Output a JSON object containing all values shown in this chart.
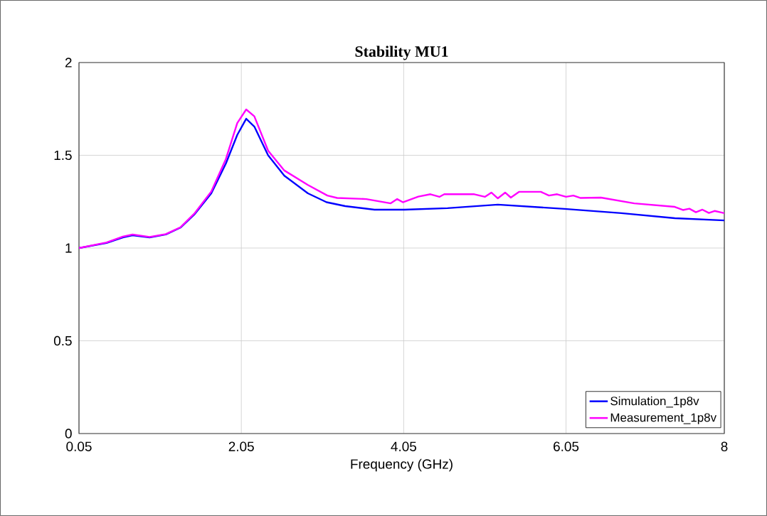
{
  "chart_data": {
    "type": "line",
    "title": "Stability MU1",
    "xlabel": "Frequency (GHz)",
    "xlim": [
      0.05,
      8
    ],
    "ylim": [
      0,
      2
    ],
    "xticks": [
      0.05,
      2.05,
      4.05,
      6.05,
      8
    ],
    "yticks": [
      0,
      0.5,
      1,
      1.5,
      2
    ],
    "grid": true,
    "legend": "bottom right",
    "marker": "none",
    "line_style": "solid",
    "series": [
      {
        "name": "Simulation_1p8v",
        "color": "#0000ff",
        "x": [
          0.05,
          0.39,
          0.59,
          0.71,
          0.92,
          1.12,
          1.3,
          1.47,
          1.68,
          1.86,
          2.0,
          2.11,
          2.21,
          2.38,
          2.58,
          2.87,
          3.1,
          3.33,
          3.69,
          4.06,
          4.59,
          5.21,
          6.03,
          6.73,
          7.39,
          8.0
        ],
        "values": [
          1.0,
          1.027,
          1.057,
          1.069,
          1.057,
          1.073,
          1.11,
          1.18,
          1.295,
          1.456,
          1.61,
          1.697,
          1.655,
          1.5,
          1.39,
          1.295,
          1.247,
          1.226,
          1.207,
          1.207,
          1.215,
          1.234,
          1.211,
          1.188,
          1.161,
          1.149
        ]
      },
      {
        "name": "Measurement_1p8v",
        "color": "#ff00ff",
        "x": [
          0.05,
          0.39,
          0.59,
          0.71,
          0.92,
          1.12,
          1.3,
          1.47,
          1.68,
          1.86,
          2.0,
          2.11,
          2.21,
          2.38,
          2.58,
          2.87,
          3.11,
          3.23,
          3.59,
          3.89,
          3.97,
          4.04,
          4.23,
          4.38,
          4.49,
          4.55,
          4.92,
          5.05,
          5.13,
          5.21,
          5.3,
          5.37,
          5.47,
          5.74,
          5.84,
          5.94,
          6.05,
          6.14,
          6.23,
          6.48,
          6.89,
          7.39,
          7.49,
          7.57,
          7.65,
          7.73,
          7.81,
          7.88,
          8.0
        ],
        "values": [
          1.0,
          1.03,
          1.062,
          1.073,
          1.06,
          1.075,
          1.112,
          1.185,
          1.305,
          1.48,
          1.674,
          1.747,
          1.71,
          1.525,
          1.418,
          1.34,
          1.283,
          1.27,
          1.264,
          1.241,
          1.264,
          1.247,
          1.277,
          1.29,
          1.276,
          1.29,
          1.29,
          1.276,
          1.299,
          1.268,
          1.299,
          1.272,
          1.303,
          1.303,
          1.283,
          1.29,
          1.276,
          1.283,
          1.27,
          1.272,
          1.241,
          1.222,
          1.205,
          1.212,
          1.193,
          1.207,
          1.189,
          1.2,
          1.188
        ]
      }
    ]
  }
}
